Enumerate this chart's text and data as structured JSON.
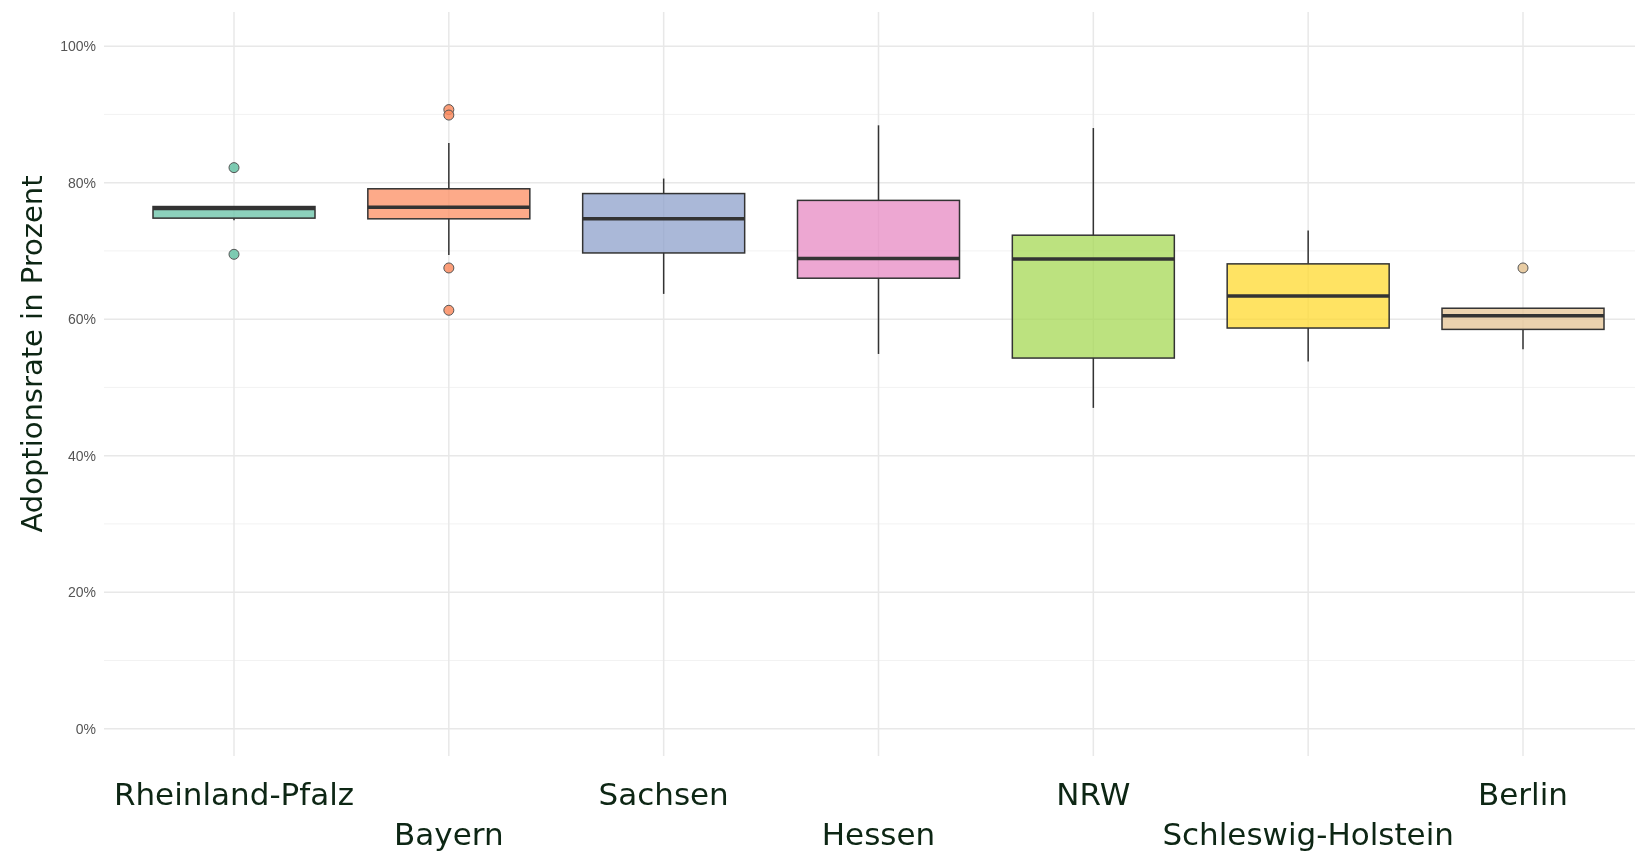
{
  "chart_data": {
    "type": "box",
    "ylabel": "Adoptionsrate in Prozent",
    "categories": [
      "Rheinland-Pfalz",
      "Bayern",
      "Sachsen",
      "Hessen",
      "NRW",
      "Schleswig-Holstein",
      "Berlin"
    ],
    "colors": [
      "#66c2a5",
      "#fc8d62",
      "#8da0cb",
      "#e78ac3",
      "#a6d854",
      "#ffd92f",
      "#e5c494"
    ],
    "boxes": [
      {
        "low": 74.5,
        "q1": 74.8,
        "median": 76.2,
        "q3": 76.5,
        "high": 76.5,
        "outliers": [
          82.2,
          69.5
        ]
      },
      {
        "low": 69.4,
        "q1": 74.7,
        "median": 76.4,
        "q3": 79.1,
        "high": 85.8,
        "outliers": [
          90.7,
          89.9,
          67.5,
          61.3
        ]
      },
      {
        "low": 63.7,
        "q1": 69.7,
        "median": 74.7,
        "q3": 78.4,
        "high": 80.6
      },
      {
        "low": 54.9,
        "q1": 66.0,
        "median": 68.9,
        "q3": 77.4,
        "high": 88.4
      },
      {
        "low": 47.0,
        "q1": 54.3,
        "median": 68.8,
        "q3": 72.3,
        "high": 88.0
      },
      {
        "low": 53.8,
        "q1": 58.7,
        "median": 63.4,
        "q3": 68.1,
        "high": 73.0
      },
      {
        "low": 55.6,
        "q1": 58.5,
        "median": 60.5,
        "q3": 61.6,
        "high": 61.6,
        "outliers": [
          67.5
        ]
      }
    ],
    "ylim": [
      -4,
      105
    ],
    "yticks": [
      {
        "value": 0,
        "label": "0%"
      },
      {
        "value": 20,
        "label": "20%"
      },
      {
        "value": 40,
        "label": "40%"
      },
      {
        "value": 60,
        "label": "60%"
      },
      {
        "value": 80,
        "label": "80%"
      },
      {
        "value": 100,
        "label": "100%"
      }
    ],
    "grid": true
  }
}
